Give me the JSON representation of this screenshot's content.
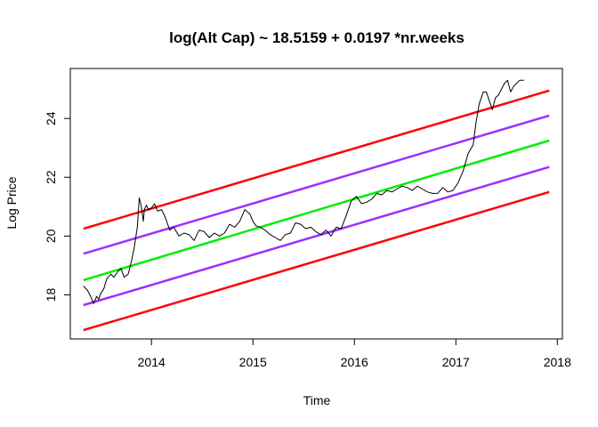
{
  "chart_data": {
    "type": "line",
    "title": "log(Alt Cap) ~ 18.5159 + 0.0197 *nr.weeks",
    "xlabel": "Time",
    "ylabel": "Log Price",
    "xlim": [
      2013.2,
      2018.05
    ],
    "ylim": [
      16.5,
      25.7
    ],
    "x_ticks": [
      {
        "value": 2014,
        "label": "2014"
      },
      {
        "value": 2015,
        "label": "2015"
      },
      {
        "value": 2016,
        "label": "2016"
      },
      {
        "value": 2017,
        "label": "2017"
      },
      {
        "value": 2018,
        "label": "2018"
      }
    ],
    "y_ticks": [
      {
        "value": 18,
        "label": "18"
      },
      {
        "value": 20,
        "label": "20"
      },
      {
        "value": 22,
        "label": "22"
      },
      {
        "value": 24,
        "label": "24"
      }
    ],
    "grid": false,
    "series": [
      {
        "color": "#000000",
        "x": [
          2013.33,
          2013.37,
          2013.4,
          2013.43,
          2013.46,
          2013.48,
          2013.5,
          2013.53,
          2013.56,
          2013.6,
          2013.63,
          2013.67,
          2013.7,
          2013.73,
          2013.77,
          2013.8,
          2013.83,
          2013.86,
          2013.88,
          2013.9,
          2013.92,
          2013.93,
          2013.95,
          2013.97,
          2014.0,
          2014.03,
          2014.06,
          2014.1,
          2014.14,
          2014.18,
          2014.22,
          2014.27,
          2014.32,
          2014.37,
          2014.42,
          2014.47,
          2014.52,
          2014.57,
          2014.62,
          2014.67,
          2014.72,
          2014.77,
          2014.82,
          2014.87,
          2014.92,
          2014.97,
          2015.0,
          2015.03,
          2015.07,
          2015.12,
          2015.17,
          2015.22,
          2015.27,
          2015.32,
          2015.37,
          2015.42,
          2015.47,
          2015.52,
          2015.57,
          2015.62,
          2015.67,
          2015.72,
          2015.77,
          2015.82,
          2015.87,
          2015.92,
          2015.97,
          2016.02,
          2016.07,
          2016.12,
          2016.17,
          2016.22,
          2016.27,
          2016.32,
          2016.37,
          2016.42,
          2016.47,
          2016.52,
          2016.57,
          2016.62,
          2016.67,
          2016.72,
          2016.77,
          2016.82,
          2016.87,
          2016.92,
          2016.97,
          2017.02,
          2017.07,
          2017.12,
          2017.17,
          2017.2,
          2017.23,
          2017.27,
          2017.3,
          2017.33,
          2017.36,
          2017.39,
          2017.42,
          2017.45,
          2017.48,
          2017.51,
          2017.54,
          2017.57,
          2017.6,
          2017.63,
          2017.67
        ],
        "values": [
          18.3,
          18.15,
          17.95,
          17.7,
          17.95,
          17.85,
          18.05,
          18.2,
          18.55,
          18.7,
          18.6,
          18.8,
          18.9,
          18.6,
          18.7,
          19.1,
          19.6,
          20.3,
          21.3,
          21.0,
          20.5,
          20.9,
          21.05,
          20.9,
          20.95,
          21.1,
          20.85,
          20.9,
          20.6,
          20.2,
          20.3,
          20.0,
          20.1,
          20.05,
          19.85,
          20.2,
          20.15,
          19.95,
          20.1,
          20.0,
          20.1,
          20.4,
          20.3,
          20.5,
          20.9,
          20.75,
          20.5,
          20.35,
          20.3,
          20.2,
          20.05,
          19.95,
          19.85,
          20.05,
          20.1,
          20.45,
          20.4,
          20.25,
          20.3,
          20.15,
          20.05,
          20.2,
          20.0,
          20.3,
          20.25,
          20.7,
          21.2,
          21.35,
          21.1,
          21.15,
          21.25,
          21.45,
          21.4,
          21.55,
          21.5,
          21.6,
          21.7,
          21.65,
          21.55,
          21.7,
          21.6,
          21.5,
          21.45,
          21.45,
          21.65,
          21.5,
          21.55,
          21.8,
          22.2,
          22.8,
          23.1,
          23.9,
          24.5,
          24.9,
          24.9,
          24.6,
          24.3,
          24.7,
          24.8,
          25.0,
          25.2,
          25.3,
          24.9,
          25.1,
          25.2,
          25.3,
          25.3
        ]
      },
      {
        "color": "#FF0000",
        "x": [
          2013.33,
          2017.92
        ],
        "values": [
          20.25,
          24.95
        ]
      },
      {
        "color": "#9B30FF",
        "x": [
          2013.33,
          2017.92
        ],
        "values": [
          19.4,
          24.1
        ]
      },
      {
        "color": "#00EE00",
        "x": [
          2013.33,
          2017.92
        ],
        "values": [
          18.5,
          23.25
        ]
      },
      {
        "color": "#9B30FF",
        "x": [
          2013.33,
          2017.92
        ],
        "values": [
          17.65,
          22.35
        ]
      },
      {
        "color": "#FF0000",
        "x": [
          2013.33,
          2017.92
        ],
        "values": [
          16.8,
          21.5
        ]
      }
    ]
  }
}
